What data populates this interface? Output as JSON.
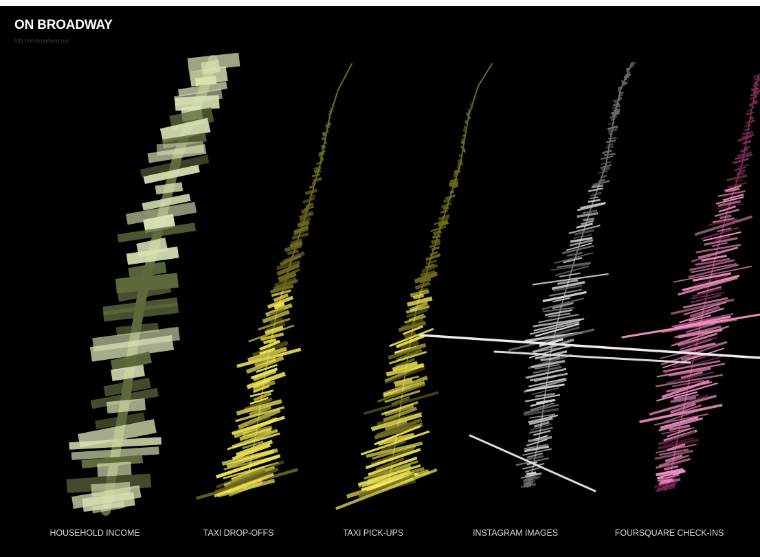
{
  "page": {
    "title": "ON BROADWAY",
    "url": "http://on-broadway.nyc"
  },
  "chart_data": {
    "type": "bar",
    "layout": "small-multiples",
    "series": [
      {
        "name": "HOUSEHOLD INCOME",
        "color": "#d8e3b5",
        "dim_color": "#5d6a3d"
      },
      {
        "name": "TAXI DROP-OFFS",
        "color": "#f3ea55",
        "dim_color": "#6f6a21"
      },
      {
        "name": "TAXI PICK-UPS",
        "color": "#f3ea55",
        "dim_color": "#6f6a21"
      },
      {
        "name": "INSTAGRAM IMAGES",
        "color": "#d2d2d0",
        "dim_color": "#6e6c66"
      },
      {
        "name": "FOURSQUARE CHECK-INS",
        "color": "#f08cbf",
        "dim_color": "#7a2d55"
      }
    ]
  }
}
